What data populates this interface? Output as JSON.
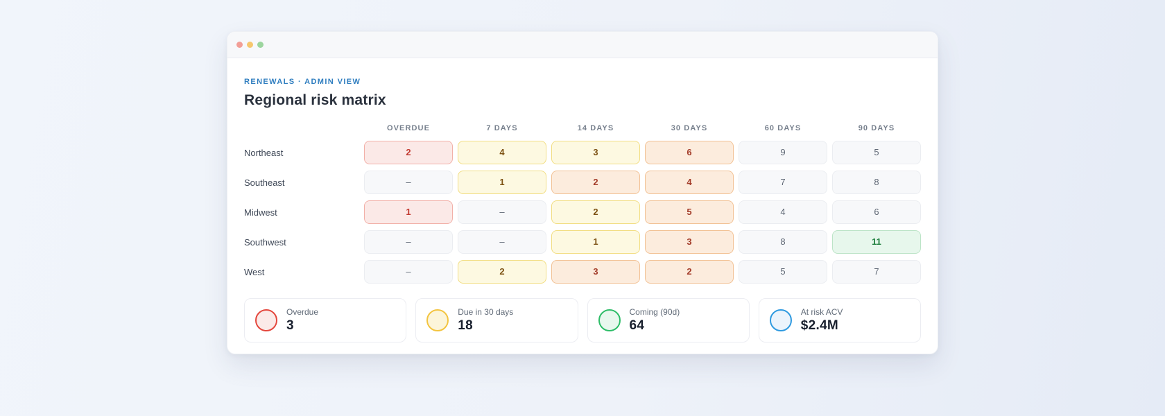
{
  "window": {
    "traffic_lights": [
      {
        "name": "close",
        "color": "#f29e96"
      },
      {
        "name": "minimize",
        "color": "#f6c76e"
      },
      {
        "name": "zoom",
        "color": "#9cd59e"
      }
    ]
  },
  "header": {
    "breadcrumb": "RENEWALS · ADMIN VIEW",
    "title": "Regional risk matrix"
  },
  "matrix": {
    "columns": [
      "OVERDUE",
      "7 DAYS",
      "14 DAYS",
      "30 DAYS",
      "60 DAYS",
      "90 DAYS"
    ],
    "rows": [
      {
        "label": "Northeast",
        "cells": [
          {
            "value": "2",
            "severity": "high"
          },
          {
            "value": "4",
            "severity": "low"
          },
          {
            "value": "3",
            "severity": "low"
          },
          {
            "value": "6",
            "severity": "med"
          },
          {
            "value": "9",
            "severity": "none"
          },
          {
            "value": "5",
            "severity": "none"
          }
        ]
      },
      {
        "label": "Southeast",
        "cells": [
          {
            "value": "–",
            "severity": "none"
          },
          {
            "value": "1",
            "severity": "low"
          },
          {
            "value": "2",
            "severity": "med"
          },
          {
            "value": "4",
            "severity": "med"
          },
          {
            "value": "7",
            "severity": "none"
          },
          {
            "value": "8",
            "severity": "none"
          }
        ]
      },
      {
        "label": "Midwest",
        "cells": [
          {
            "value": "1",
            "severity": "high"
          },
          {
            "value": "–",
            "severity": "none"
          },
          {
            "value": "2",
            "severity": "low"
          },
          {
            "value": "5",
            "severity": "med"
          },
          {
            "value": "4",
            "severity": "none"
          },
          {
            "value": "6",
            "severity": "none"
          }
        ]
      },
      {
        "label": "Southwest",
        "cells": [
          {
            "value": "–",
            "severity": "none"
          },
          {
            "value": "–",
            "severity": "none"
          },
          {
            "value": "1",
            "severity": "low"
          },
          {
            "value": "3",
            "severity": "med"
          },
          {
            "value": "8",
            "severity": "none"
          },
          {
            "value": "11",
            "severity": "good"
          }
        ]
      },
      {
        "label": "West",
        "cells": [
          {
            "value": "–",
            "severity": "none"
          },
          {
            "value": "2",
            "severity": "low"
          },
          {
            "value": "3",
            "severity": "med"
          },
          {
            "value": "2",
            "severity": "med"
          },
          {
            "value": "5",
            "severity": "none"
          },
          {
            "value": "7",
            "severity": "none"
          }
        ]
      }
    ]
  },
  "severity_colors": {
    "none": {
      "bg": "#f7f8fa",
      "border": "#ebedf1",
      "text": "#5d6673"
    },
    "low": {
      "bg": "#fdf9e1",
      "border": "#f2de83",
      "text": "#7d5213"
    },
    "med": {
      "bg": "#fcecdd",
      "border": "#f2c295",
      "text": "#a43d2a"
    },
    "high": {
      "bg": "#fbe9e7",
      "border": "#f2b0a8",
      "text": "#c23b32"
    },
    "good": {
      "bg": "#e7f7ec",
      "border": "#bce4c7",
      "text": "#1f7f3e"
    }
  },
  "summary_cards": [
    {
      "label": "Overdue",
      "value": "3",
      "ring_color": "#e4473d",
      "ring_fill": "#fbeae8"
    },
    {
      "label": "Due in 30 days",
      "value": "18",
      "ring_color": "#f3c440",
      "ring_fill": "#fcf5da"
    },
    {
      "label": "Coming (90d)",
      "value": "64",
      "ring_color": "#2ebd68",
      "ring_fill": "#e8f8ee"
    },
    {
      "label": "At risk ACV",
      "value": "$2.4M",
      "ring_color": "#2f9ae0",
      "ring_fill": "#ecf4fc"
    }
  ]
}
